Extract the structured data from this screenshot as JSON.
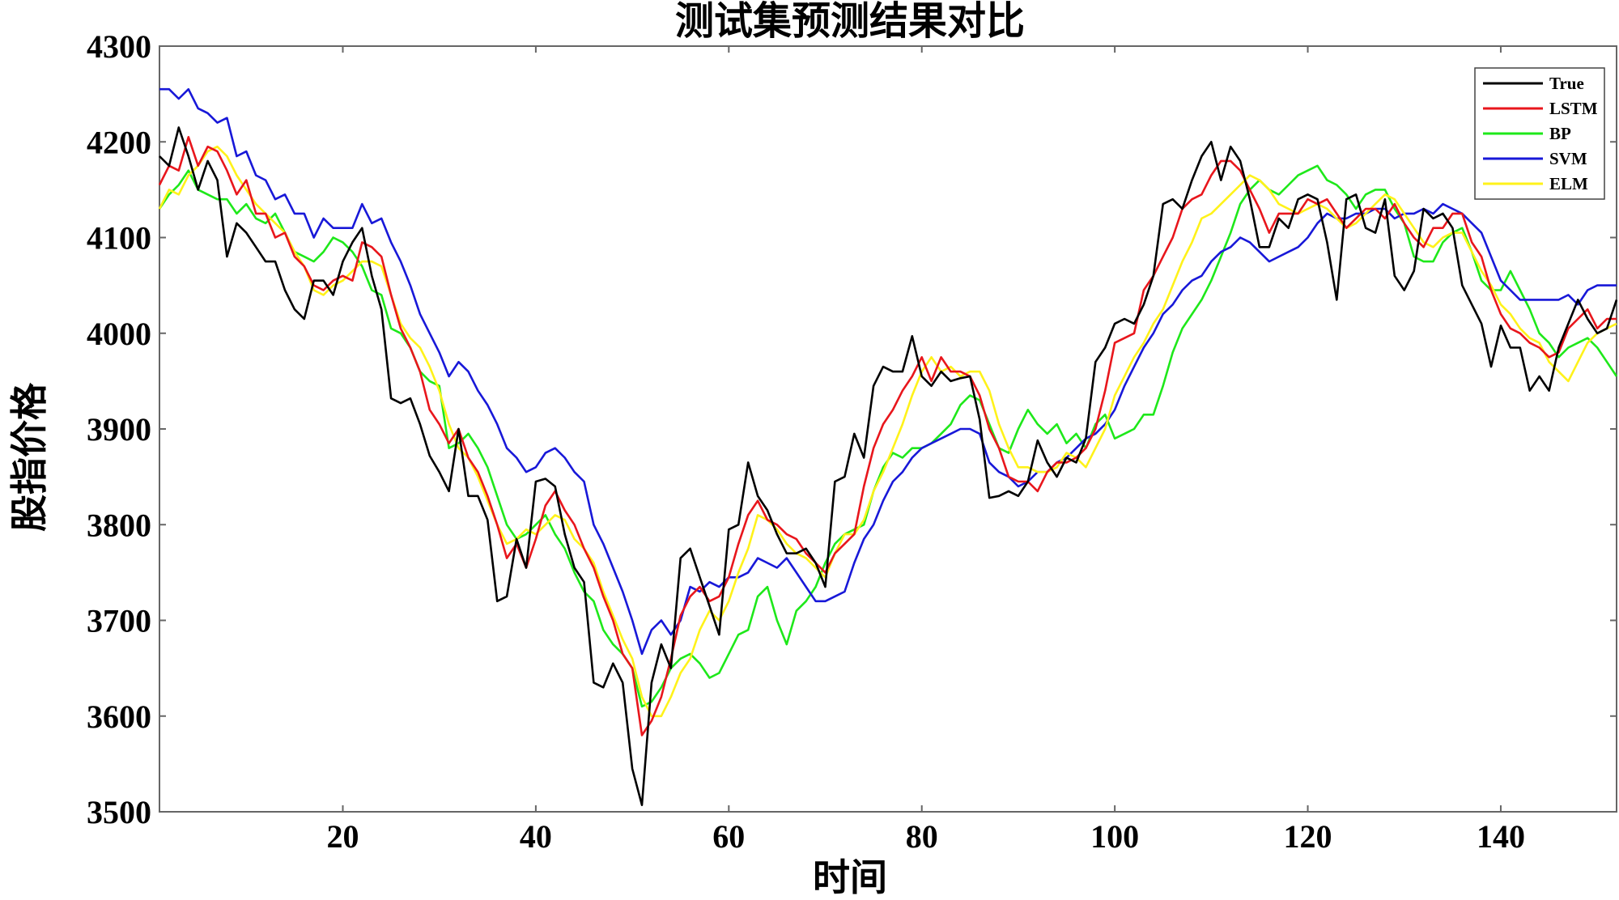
{
  "chart_data": {
    "type": "line",
    "title": "测试集预测结果对比",
    "xlabel": "时间",
    "ylabel": "股指价格",
    "xlim": [
      1,
      152
    ],
    "ylim": [
      3500,
      4300
    ],
    "xticks": [
      20,
      40,
      60,
      80,
      100,
      120,
      140
    ],
    "yticks": [
      3500,
      3600,
      3700,
      3800,
      3900,
      4000,
      4100,
      4200,
      4300
    ],
    "grid": false,
    "legend_position": "top-right",
    "x": [
      1,
      2,
      3,
      4,
      5,
      6,
      7,
      8,
      9,
      10,
      11,
      12,
      13,
      14,
      15,
      16,
      17,
      18,
      19,
      20,
      21,
      22,
      23,
      24,
      25,
      26,
      27,
      28,
      29,
      30,
      31,
      32,
      33,
      34,
      35,
      36,
      37,
      38,
      39,
      40,
      41,
      42,
      43,
      44,
      45,
      46,
      47,
      48,
      49,
      50,
      51,
      52,
      53,
      54,
      55,
      56,
      57,
      58,
      59,
      60,
      61,
      62,
      63,
      64,
      65,
      66,
      67,
      68,
      69,
      70,
      71,
      72,
      73,
      74,
      75,
      76,
      77,
      78,
      79,
      80,
      81,
      82,
      83,
      84,
      85,
      86,
      87,
      88,
      89,
      90,
      91,
      92,
      93,
      94,
      95,
      96,
      97,
      98,
      99,
      100,
      101,
      102,
      103,
      104,
      105,
      106,
      107,
      108,
      109,
      110,
      111,
      112,
      113,
      114,
      115,
      116,
      117,
      118,
      119,
      120,
      121,
      122,
      123,
      124,
      125,
      126,
      127,
      128,
      129,
      130,
      131,
      132,
      133,
      134,
      135,
      136,
      137,
      138,
      139,
      140,
      141,
      142,
      143,
      144,
      145,
      146,
      147,
      148,
      149,
      150,
      151,
      152
    ],
    "series": [
      {
        "name": "True",
        "color": "#000000",
        "values": [
          4185,
          4175,
          4215,
          4185,
          4150,
          4180,
          4160,
          4080,
          4115,
          4105,
          4090,
          4075,
          4075,
          4045,
          4025,
          4015,
          4055,
          4055,
          4040,
          4075,
          4095,
          4110,
          4060,
          4025,
          3932,
          3927,
          3932,
          3905,
          3872,
          3855,
          3835,
          3900,
          3830,
          3830,
          3805,
          3720,
          3725,
          3785,
          3755,
          3845,
          3848,
          3840,
          3790,
          3755,
          3740,
          3635,
          3630,
          3655,
          3635,
          3545,
          3507,
          3635,
          3675,
          3650,
          3765,
          3775,
          3745,
          3715,
          3685,
          3795,
          3800,
          3865,
          3830,
          3815,
          3790,
          3770,
          3770,
          3775,
          3760,
          3735,
          3845,
          3850,
          3895,
          3870,
          3945,
          3965,
          3960,
          3960,
          3997,
          3955,
          3945,
          3960,
          3950,
          3953,
          3955,
          3910,
          3828,
          3830,
          3835,
          3830,
          3845,
          3888,
          3865,
          3850,
          3870,
          3865,
          3890,
          3970,
          3985,
          4010,
          4015,
          4010,
          4030,
          4060,
          4135,
          4140,
          4130,
          4160,
          4185,
          4200,
          4160,
          4195,
          4180,
          4140,
          4090,
          4090,
          4120,
          4110,
          4140,
          4145,
          4140,
          4095,
          4035,
          4140,
          4145,
          4110,
          4105,
          4140,
          4060,
          4045,
          4065,
          4130,
          4120,
          4125,
          4110,
          4050,
          4030,
          4010,
          3965,
          4008,
          3985,
          3985,
          3940,
          3955,
          3940,
          3985,
          4010,
          4035,
          4015,
          4000,
          4005,
          4035
        ]
      },
      {
        "name": "LSTM",
        "color": "#e8161c",
        "values": [
          4155,
          4175,
          4170,
          4205,
          4175,
          4195,
          4190,
          4170,
          4145,
          4160,
          4125,
          4125,
          4100,
          4105,
          4080,
          4070,
          4050,
          4045,
          4055,
          4060,
          4055,
          4095,
          4090,
          4080,
          4040,
          4005,
          3985,
          3960,
          3920,
          3905,
          3885,
          3900,
          3870,
          3855,
          3830,
          3800,
          3765,
          3780,
          3755,
          3785,
          3820,
          3835,
          3815,
          3800,
          3775,
          3755,
          3725,
          3700,
          3665,
          3650,
          3580,
          3595,
          3620,
          3660,
          3705,
          3725,
          3735,
          3720,
          3725,
          3745,
          3780,
          3810,
          3825,
          3805,
          3800,
          3790,
          3785,
          3770,
          3760,
          3750,
          3770,
          3780,
          3790,
          3840,
          3880,
          3905,
          3920,
          3940,
          3955,
          3975,
          3950,
          3975,
          3960,
          3960,
          3955,
          3935,
          3900,
          3880,
          3850,
          3845,
          3845,
          3835,
          3855,
          3865,
          3865,
          3870,
          3880,
          3900,
          3940,
          3990,
          3995,
          4000,
          4045,
          4060,
          4080,
          4100,
          4130,
          4140,
          4145,
          4165,
          4180,
          4180,
          4170,
          4150,
          4130,
          4105,
          4125,
          4125,
          4125,
          4140,
          4135,
          4140,
          4125,
          4110,
          4120,
          4130,
          4130,
          4120,
          4135,
          4115,
          4100,
          4090,
          4110,
          4110,
          4125,
          4125,
          4095,
          4080,
          4045,
          4020,
          4005,
          4000,
          3990,
          3985,
          3975,
          3980,
          4005,
          4015,
          4025,
          4005,
          4015,
          4015
        ]
      },
      {
        "name": "BP",
        "color": "#1ee81a",
        "values": [
          4130,
          4145,
          4155,
          4170,
          4150,
          4145,
          4140,
          4140,
          4125,
          4135,
          4120,
          4115,
          4125,
          4105,
          4085,
          4080,
          4075,
          4085,
          4100,
          4095,
          4085,
          4070,
          4045,
          4040,
          4005,
          4000,
          3985,
          3960,
          3950,
          3945,
          3880,
          3885,
          3895,
          3880,
          3860,
          3830,
          3800,
          3785,
          3790,
          3800,
          3810,
          3790,
          3775,
          3750,
          3730,
          3720,
          3690,
          3675,
          3665,
          3650,
          3610,
          3615,
          3630,
          3650,
          3660,
          3665,
          3655,
          3640,
          3645,
          3665,
          3685,
          3690,
          3725,
          3735,
          3700,
          3675,
          3710,
          3720,
          3735,
          3760,
          3780,
          3790,
          3795,
          3800,
          3835,
          3860,
          3875,
          3870,
          3880,
          3880,
          3885,
          3895,
          3905,
          3925,
          3935,
          3930,
          3905,
          3880,
          3875,
          3900,
          3920,
          3905,
          3895,
          3905,
          3885,
          3895,
          3880,
          3905,
          3915,
          3890,
          3895,
          3900,
          3915,
          3915,
          3945,
          3980,
          4005,
          4020,
          4035,
          4055,
          4080,
          4105,
          4135,
          4150,
          4160,
          4150,
          4145,
          4155,
          4165,
          4170,
          4175,
          4160,
          4155,
          4145,
          4130,
          4145,
          4150,
          4150,
          4130,
          4115,
          4080,
          4075,
          4075,
          4095,
          4105,
          4110,
          4085,
          4055,
          4045,
          4045,
          4065,
          4045,
          4025,
          4000,
          3990,
          3975,
          3985,
          3990,
          3995,
          3985,
          3970,
          3955
        ]
      },
      {
        "name": "SVM",
        "color": "#1818d8",
        "values": [
          4255,
          4255,
          4245,
          4255,
          4235,
          4230,
          4220,
          4225,
          4185,
          4190,
          4165,
          4160,
          4140,
          4145,
          4125,
          4125,
          4100,
          4120,
          4110,
          4110,
          4110,
          4135,
          4115,
          4120,
          4095,
          4075,
          4050,
          4020,
          4000,
          3980,
          3955,
          3970,
          3960,
          3940,
          3925,
          3905,
          3880,
          3870,
          3855,
          3860,
          3875,
          3880,
          3870,
          3855,
          3845,
          3800,
          3780,
          3755,
          3730,
          3700,
          3665,
          3690,
          3700,
          3685,
          3700,
          3735,
          3730,
          3740,
          3735,
          3745,
          3745,
          3750,
          3765,
          3760,
          3755,
          3765,
          3750,
          3735,
          3720,
          3720,
          3725,
          3730,
          3760,
          3785,
          3800,
          3825,
          3845,
          3855,
          3870,
          3880,
          3885,
          3890,
          3895,
          3900,
          3900,
          3895,
          3865,
          3855,
          3850,
          3840,
          3845,
          3855,
          3855,
          3865,
          3870,
          3880,
          3890,
          3895,
          3905,
          3920,
          3945,
          3965,
          3985,
          4000,
          4020,
          4030,
          4045,
          4055,
          4060,
          4075,
          4085,
          4090,
          4100,
          4095,
          4085,
          4075,
          4080,
          4085,
          4090,
          4100,
          4115,
          4125,
          4120,
          4120,
          4125,
          4125,
          4130,
          4130,
          4120,
          4125,
          4125,
          4130,
          4125,
          4135,
          4130,
          4125,
          4115,
          4105,
          4080,
          4055,
          4045,
          4035,
          4035,
          4035,
          4035,
          4035,
          4040,
          4030,
          4045,
          4050,
          4050,
          4050
        ]
      },
      {
        "name": "ELM",
        "color": "#fff21a",
        "values": [
          4130,
          4150,
          4145,
          4165,
          4175,
          4190,
          4195,
          4185,
          4165,
          4150,
          4135,
          4125,
          4115,
          4105,
          4085,
          4070,
          4045,
          4040,
          4050,
          4055,
          4065,
          4075,
          4075,
          4070,
          4040,
          4010,
          3995,
          3985,
          3965,
          3940,
          3905,
          3880,
          3870,
          3850,
          3825,
          3800,
          3780,
          3785,
          3795,
          3790,
          3800,
          3810,
          3805,
          3785,
          3775,
          3760,
          3730,
          3705,
          3680,
          3660,
          3620,
          3600,
          3600,
          3620,
          3645,
          3660,
          3690,
          3710,
          3700,
          3720,
          3750,
          3775,
          3810,
          3805,
          3795,
          3780,
          3770,
          3765,
          3755,
          3745,
          3770,
          3790,
          3790,
          3805,
          3835,
          3855,
          3880,
          3905,
          3935,
          3960,
          3975,
          3960,
          3965,
          3955,
          3960,
          3960,
          3940,
          3905,
          3880,
          3860,
          3860,
          3855,
          3855,
          3860,
          3875,
          3870,
          3860,
          3880,
          3900,
          3935,
          3955,
          3975,
          3990,
          4010,
          4025,
          4050,
          4075,
          4095,
          4120,
          4125,
          4135,
          4145,
          4155,
          4165,
          4160,
          4150,
          4135,
          4130,
          4125,
          4130,
          4135,
          4130,
          4120,
          4110,
          4115,
          4125,
          4135,
          4145,
          4140,
          4125,
          4110,
          4095,
          4090,
          4100,
          4105,
          4105,
          4085,
          4065,
          4050,
          4030,
          4020,
          4005,
          3995,
          3990,
          3970,
          3960,
          3950,
          3970,
          3990,
          4000,
          4005,
          4010
        ]
      }
    ]
  }
}
